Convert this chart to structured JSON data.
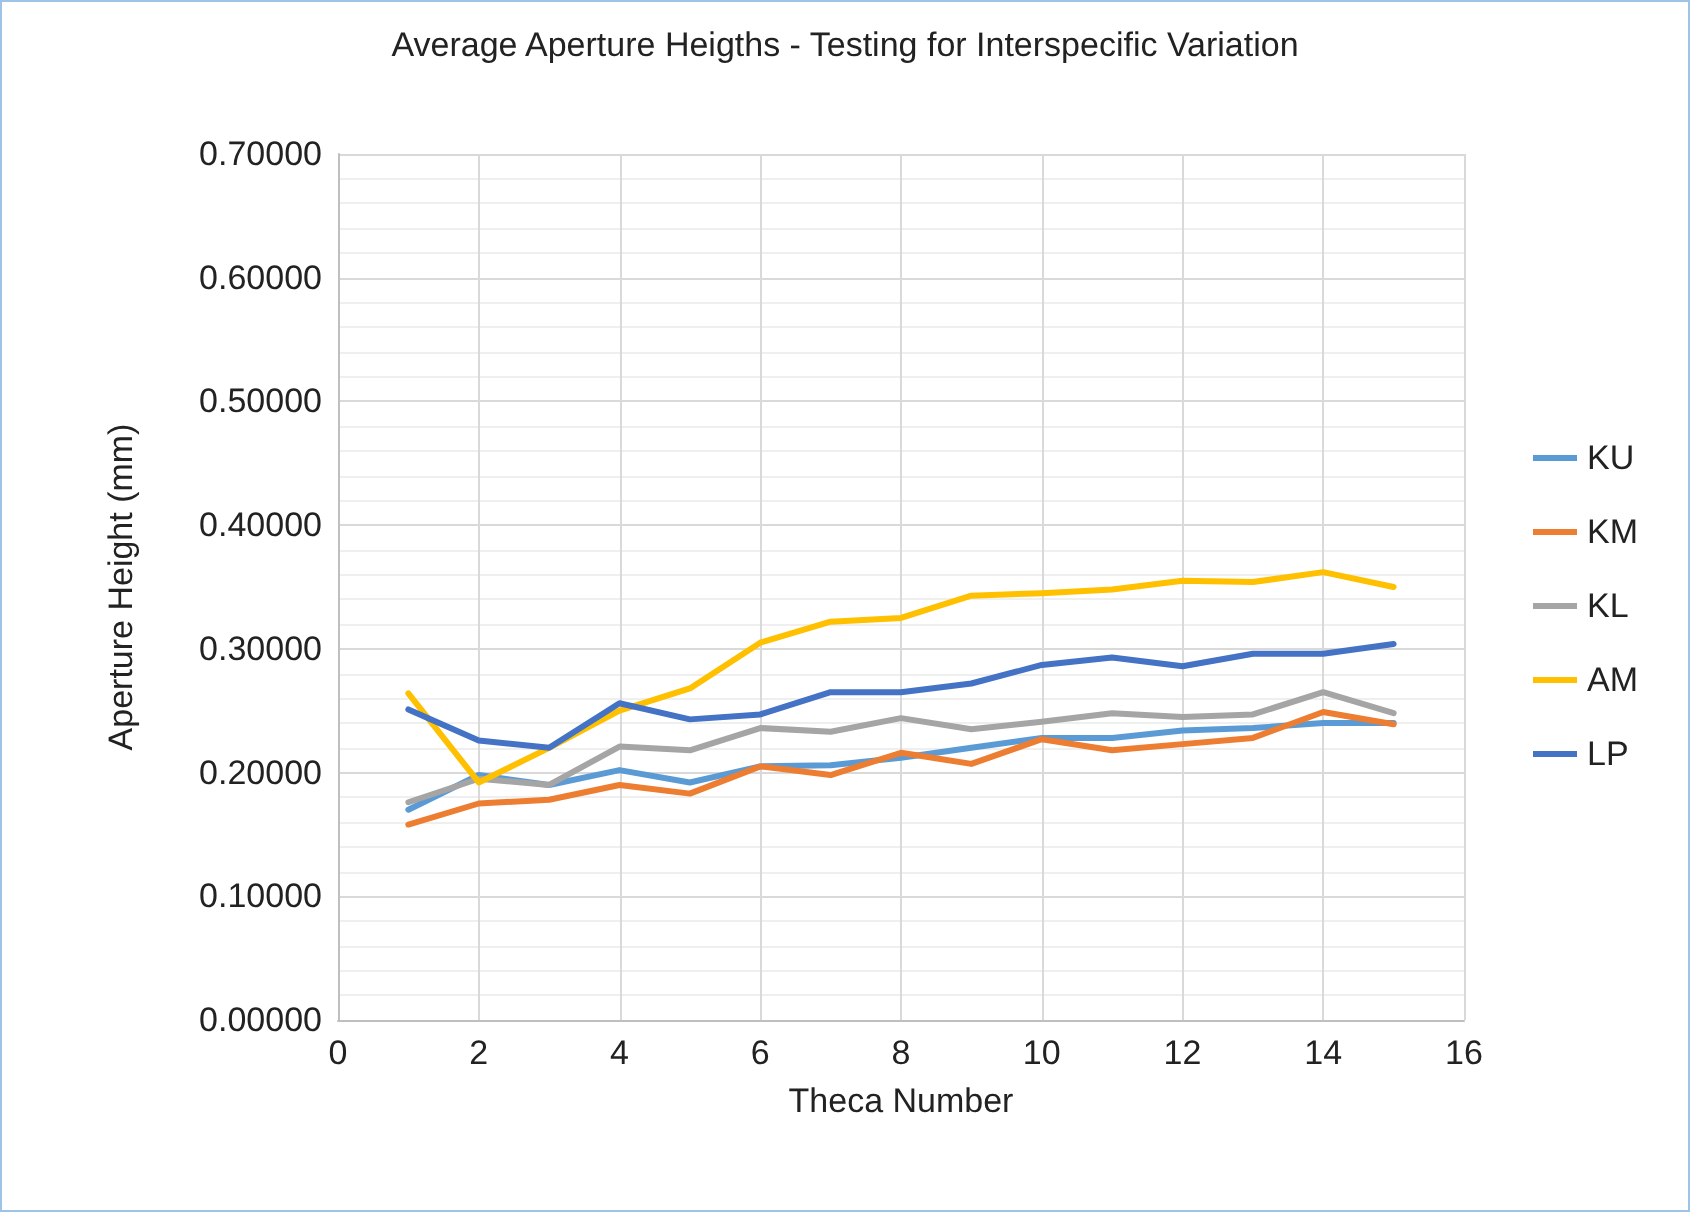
{
  "chart_data": {
    "type": "line",
    "title": "Average Aperture Heigths - Testing for Interspecific Variation",
    "xlabel": "Theca Number",
    "ylabel": "Aperture Height (mm)",
    "x": [
      1,
      2,
      3,
      4,
      5,
      6,
      7,
      8,
      9,
      10,
      11,
      12,
      13,
      14,
      15
    ],
    "series": [
      {
        "name": "KU",
        "color": "#5b9bd5",
        "values": [
          0.17,
          0.198,
          0.19,
          0.202,
          0.192,
          0.205,
          0.206,
          0.212,
          0.22,
          0.228,
          0.228,
          0.234,
          0.236,
          0.24,
          0.24
        ]
      },
      {
        "name": "KM",
        "color": "#ed7d31",
        "values": [
          0.158,
          0.175,
          0.178,
          0.19,
          0.183,
          0.205,
          0.198,
          0.216,
          0.207,
          0.227,
          0.218,
          0.223,
          0.228,
          0.249,
          0.239
        ]
      },
      {
        "name": "KL",
        "color": "#a5a5a5",
        "values": [
          0.176,
          0.195,
          0.19,
          0.221,
          0.218,
          0.236,
          0.233,
          0.244,
          0.235,
          0.241,
          0.248,
          0.245,
          0.247,
          0.265,
          0.248
        ]
      },
      {
        "name": "AM",
        "color": "#ffc000",
        "values": [
          0.264,
          0.192,
          0.22,
          0.25,
          0.268,
          0.305,
          0.322,
          0.325,
          0.343,
          0.345,
          0.348,
          0.355,
          0.354,
          0.362,
          0.35
        ]
      },
      {
        "name": "LP",
        "color": "#4472c4",
        "values": [
          0.251,
          0.226,
          0.22,
          0.256,
          0.243,
          0.247,
          0.265,
          0.265,
          0.272,
          0.287,
          0.293,
          0.286,
          0.296,
          0.296,
          0.304
        ]
      }
    ],
    "xlim": [
      0,
      16
    ],
    "xticks": [
      0,
      2,
      4,
      6,
      8,
      10,
      12,
      14,
      16
    ],
    "ylim": [
      0,
      0.7
    ],
    "yticks": [
      {
        "value": 0,
        "label": "0.00000"
      },
      {
        "value": 0.1,
        "label": "0.10000"
      },
      {
        "value": 0.2,
        "label": "0.20000"
      },
      {
        "value": 0.3,
        "label": "0.30000"
      },
      {
        "value": 0.4,
        "label": "0.40000"
      },
      {
        "value": 0.5,
        "label": "0.50000"
      },
      {
        "value": 0.6,
        "label": "0.60000"
      },
      {
        "value": 0.7,
        "label": "0.70000"
      }
    ],
    "grid": true,
    "legend": "right",
    "marker": "none",
    "line_style": "solid"
  }
}
